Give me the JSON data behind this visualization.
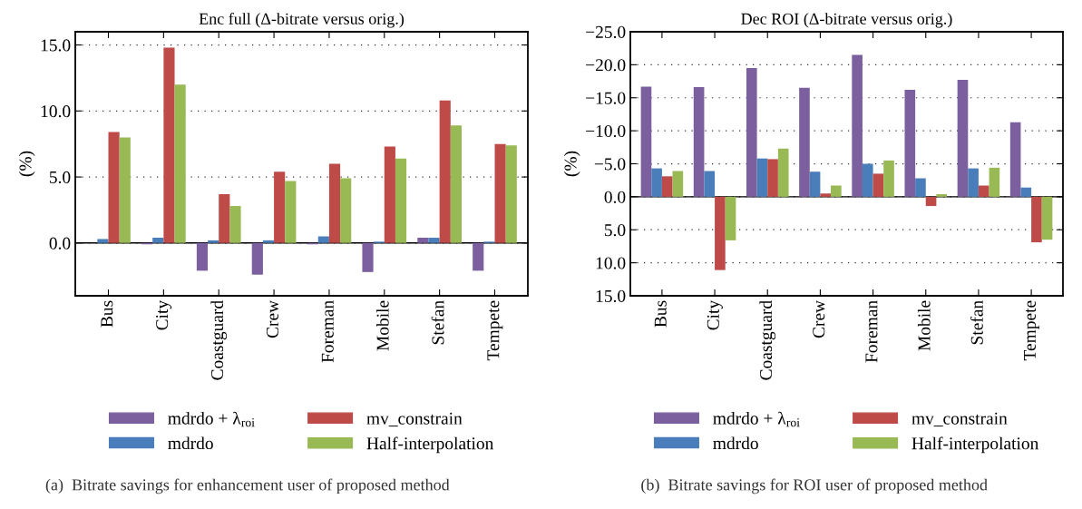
{
  "chart_data": [
    {
      "type": "bar",
      "title": "Enc full (Δ-bitrate versus orig.)",
      "ylabel": "(%)",
      "categories": [
        "Bus",
        "City",
        "Coastguard",
        "Crew",
        "Foreman",
        "Mobile",
        "Stefan",
        "Tempete"
      ],
      "series": [
        {
          "name": "mdrdo + λ$_{roi}$",
          "color": "#7b5f9e",
          "values": [
            0,
            -0.1,
            -2.1,
            -2.4,
            -0.1,
            -2.2,
            0.4,
            -2.1
          ]
        },
        {
          "name": "mdrdo",
          "color": "#4a7ebb",
          "values": [
            0.3,
            0.4,
            0.2,
            0.2,
            0.5,
            0.1,
            0.4,
            0.1
          ]
        },
        {
          "name": "mv_constrain",
          "color": "#be4b48",
          "values": [
            8.4,
            14.8,
            3.7,
            5.4,
            6.0,
            7.3,
            10.8,
            7.5
          ]
        },
        {
          "name": "Half-interpolation",
          "color": "#98b954",
          "values": [
            8.0,
            12.0,
            2.8,
            4.7,
            4.9,
            6.4,
            8.9,
            7.4
          ]
        }
      ],
      "ylim": [
        -4,
        16
      ],
      "yticks": [
        {
          "value": 0,
          "label": "0.0"
        },
        {
          "value": 5,
          "label": "5.0"
        },
        {
          "value": 10,
          "label": "10.0"
        },
        {
          "value": 15,
          "label": "15.0"
        }
      ],
      "grid": "y",
      "legend": "bottom",
      "ref_lines": [
        {
          "axis": "y",
          "value": 0,
          "color": "#000000",
          "line_style": "solid"
        }
      ],
      "annotations": [
        "(a)  Bitrate savings for enhancement user of proposed method"
      ]
    },
    {
      "type": "bar",
      "title": "Dec ROI (Δ-bitrate versus orig.)",
      "ylabel": "(%)",
      "categories": [
        "Bus",
        "City",
        "Coastguard",
        "Crew",
        "Foreman",
        "Mobile",
        "Stefan",
        "Tempete"
      ],
      "series": [
        {
          "name": "mdrdo + λ$_{roi}$",
          "color": "#7b5f9e",
          "values": [
            -16.7,
            -16.6,
            -19.5,
            -16.5,
            -21.5,
            -16.2,
            -17.7,
            -11.3
          ]
        },
        {
          "name": "mdrdo",
          "color": "#4a7ebb",
          "values": [
            -4.3,
            -3.9,
            -5.8,
            -3.8,
            -5.0,
            -2.8,
            -4.3,
            -1.4
          ]
        },
        {
          "name": "mv_constrain",
          "color": "#be4b48",
          "values": [
            -3.1,
            11.1,
            -5.7,
            -0.5,
            -3.5,
            1.4,
            -1.7,
            6.9
          ]
        },
        {
          "name": "Half-interpolation",
          "color": "#98b954",
          "values": [
            -3.9,
            6.6,
            -7.3,
            -1.7,
            -5.5,
            -0.4,
            -4.4,
            6.5
          ]
        }
      ],
      "ylim": [
        15,
        -25
      ],
      "yticks": [
        {
          "value": -25,
          "label": "−25.0"
        },
        {
          "value": -20,
          "label": "−20.0"
        },
        {
          "value": -15,
          "label": "−15.0"
        },
        {
          "value": -10,
          "label": "−10.0"
        },
        {
          "value": -5,
          "label": "−5.0"
        },
        {
          "value": 0,
          "label": "0.0"
        },
        {
          "value": 5,
          "label": "5.0"
        },
        {
          "value": 10,
          "label": "10.0"
        },
        {
          "value": 15,
          "label": "15.0"
        }
      ],
      "grid": "y",
      "legend": "bottom",
      "ref_lines": [
        {
          "axis": "y",
          "value": 0,
          "color": "#000000",
          "line_style": "solid"
        }
      ],
      "annotations": [
        "(b)  Bitrate savings for ROI user of proposed method"
      ]
    }
  ]
}
